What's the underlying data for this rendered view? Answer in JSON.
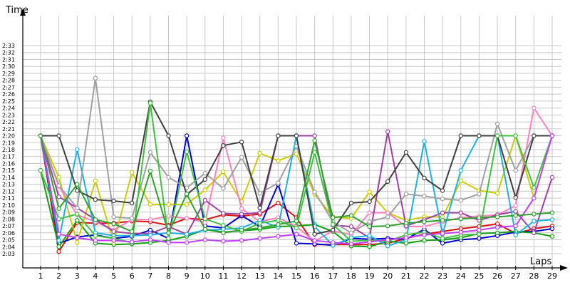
{
  "chart_data": {
    "type": "line",
    "title": "",
    "ylabel": "Time",
    "xlabel": "Laps",
    "x": [
      1,
      2,
      3,
      4,
      5,
      6,
      7,
      8,
      9,
      10,
      11,
      12,
      13,
      14,
      15,
      16,
      17,
      18,
      19,
      20,
      21,
      22,
      23,
      24,
      25,
      26,
      27,
      28,
      29
    ],
    "xlim": [
      0,
      29
    ],
    "ylim_seconds": [
      122,
      135
    ],
    "y_ticks": [
      "2:03",
      "2:04",
      "2:05",
      "2:06",
      "2:07",
      "2:08",
      "2:09",
      "2:10",
      "2:11",
      "2:12",
      "2:13",
      "2:14",
      "2:15",
      "2:16",
      "2:17",
      "2:18",
      "2:19",
      "2:20",
      "2:21",
      "2:22",
      "2:23",
      "2:24",
      "2:25",
      "2:26",
      "2:27",
      "2:28",
      "2:29",
      "2:30",
      "2:31",
      "2:32",
      "2:33"
    ],
    "grid": true,
    "legend": "none",
    "y_unit": "seconds (lap time, m:ss = seconds / 60)",
    "series": [
      {
        "color": "#e01010",
        "values": [
          140,
          123.3,
          127.5,
          127.4,
          127.4,
          127.7,
          127.6,
          127.1,
          128.1,
          127.9,
          128.6,
          128.4,
          128.7,
          130.3,
          128.2,
          124.3,
          124.3,
          124.3,
          124.3,
          124.5,
          125.2,
          125.8,
          126.2,
          126.6,
          126.9,
          127.3,
          125.9,
          126.6,
          127.0
        ]
      },
      {
        "color": "#0000d0",
        "values": [
          140,
          124.5,
          125.4,
          125.7,
          125.2,
          125.5,
          126.4,
          125.2,
          140.0,
          127.0,
          126.7,
          128.5,
          126.9,
          133.0,
          124.5,
          124.4,
          124.2,
          125.2,
          125.1,
          125.2,
          125.1,
          126.5,
          124.5,
          125.0,
          125.2,
          125.6,
          126.1,
          126.2,
          126.6
        ]
      },
      {
        "color": "#10a010",
        "values": [
          135,
          124.0,
          127.8,
          124.5,
          124.3,
          124.4,
          124.6,
          124.9,
          125.5,
          126.5,
          126.1,
          126.3,
          126.5,
          126.9,
          127.0,
          127.2,
          126.2,
          124.1,
          124.0,
          124.8,
          124.5,
          124.9,
          125.0,
          125.3,
          125.9,
          126.0,
          126.2,
          126.0,
          125.5
        ]
      },
      {
        "color": "#cccc00",
        "values": [
          140,
          134.0,
          124.6,
          133.5,
          124.6,
          134.7,
          130.1,
          130.1,
          130.1,
          132.2,
          134.8,
          130.5,
          137.5,
          136.4,
          137.4,
          131.6,
          128.3,
          128.1,
          131.9,
          128.9,
          127.8,
          128.3,
          128.3,
          133.5,
          132.1,
          131.7,
          140.0,
          131.0,
          140.0
        ]
      },
      {
        "color": "#ff80c0",
        "values": [
          140,
          132.7,
          128.6,
          127.6,
          126.4,
          127.9,
          127.9,
          128.4,
          128.1,
          127.5,
          139.7,
          129.5,
          127.6,
          128.2,
          126.9,
          124.8,
          126.3,
          125.7,
          128.9,
          128.9,
          126.9,
          126.9,
          127.6,
          128.2,
          128.4,
          128.6,
          129.9,
          144.0,
          140.0
        ]
      },
      {
        "color": "#a040a0",
        "values": [
          140,
          131.2,
          129.6,
          127.9,
          126.2,
          125.9,
          125.9,
          126.9,
          125.8,
          130.7,
          128.8,
          128.7,
          128.9,
          140.0,
          140.0,
          140.0,
          127.1,
          126.9,
          125.3,
          140.6,
          127.0,
          127.9,
          128.9,
          128.9,
          127.8,
          128.6,
          129.1,
          126.0,
          134.0
        ]
      },
      {
        "color": "#20b0e0",
        "values": [
          140,
          124.9,
          138.0,
          126.0,
          125.6,
          125.6,
          125.7,
          126.0,
          125.8,
          126.4,
          126.5,
          126.7,
          127.8,
          126.8,
          140.0,
          126.9,
          124.2,
          125.3,
          125.6,
          124.1,
          125.0,
          139.2,
          125.8,
          135.0,
          140.0,
          140.0,
          125.7,
          127.7,
          127.9
        ]
      },
      {
        "color": "#a0a0a0",
        "values": [
          140,
          132.8,
          129.6,
          148.3,
          128.3,
          128.1,
          137.6,
          134.0,
          132.5,
          134.6,
          132.4,
          136.9,
          131.7,
          133.2,
          138.5,
          131.9,
          127.6,
          126.0,
          127.6,
          128.3,
          131.6,
          131.3,
          130.9,
          130.7,
          131.6,
          141.7,
          135.0,
          140.0,
          140.0
        ]
      },
      {
        "color": "#404040",
        "values": [
          140,
          140.0,
          132.1,
          130.8,
          130.6,
          130.3,
          144.9,
          140.0,
          131.5,
          133.7,
          138.6,
          139.1,
          129.6,
          140.0,
          140.0,
          125.8,
          126.4,
          130.3,
          130.5,
          133.4,
          137.6,
          133.9,
          132.1,
          140.0,
          140.0,
          140.0,
          131.1,
          140.0,
          140.0
        ]
      },
      {
        "color": "#40c040",
        "values": [
          135,
          128.0,
          128.7,
          125.6,
          125.2,
          124.6,
          144.7,
          125.2,
          137.7,
          128.0,
          127.1,
          126.2,
          127.4,
          127.8,
          126.7,
          137.6,
          127.2,
          124.8,
          124.9,
          124.8,
          125.7,
          126.1,
          125.2,
          125.7,
          125.8,
          140.0,
          140.0,
          132.5,
          140.0
        ]
      },
      {
        "color": "#c040ff",
        "values": [
          140,
          125.8,
          125.3,
          124.9,
          124.9,
          124.7,
          125.0,
          124.6,
          124.6,
          125.0,
          124.8,
          124.9,
          125.2,
          125.5,
          125.8,
          124.9,
          124.6,
          124.4,
          124.7,
          125.0,
          125.3,
          125.7,
          125.9,
          126.1,
          126.4,
          126.8,
          127.0,
          131.0,
          140.0
        ]
      },
      {
        "color": "#30a030",
        "values": [
          140,
          129.5,
          133.0,
          127.9,
          127.3,
          126.2,
          134.9,
          126.0,
          131.6,
          126.5,
          126.0,
          126.4,
          126.7,
          127.2,
          127.7,
          139.3,
          128.2,
          128.5,
          126.9,
          127.0,
          127.4,
          127.6,
          127.8,
          128.0,
          128.2,
          128.3,
          128.5,
          128.7,
          128.9
        ]
      }
    ]
  }
}
